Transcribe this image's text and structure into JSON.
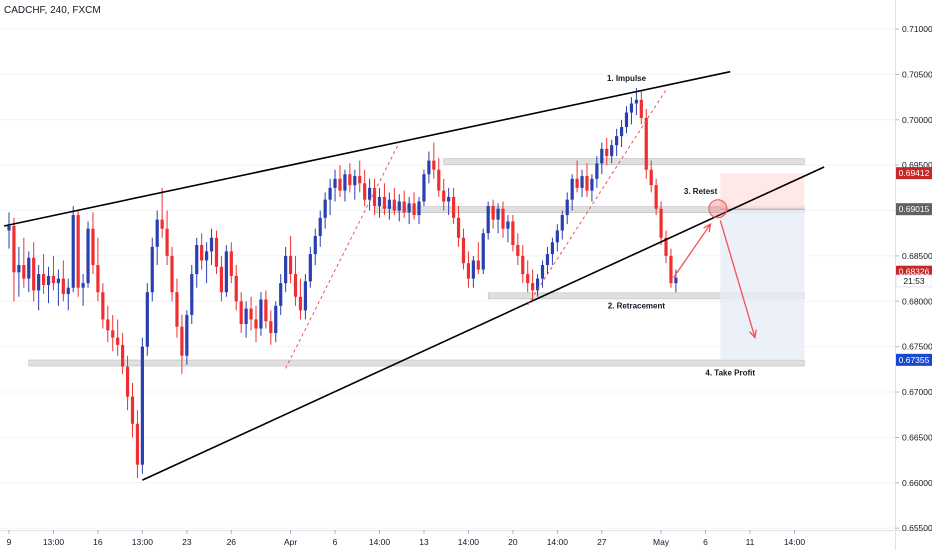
{
  "colors": {
    "up": "#2a3fb0",
    "down": "#ef2f2f",
    "trendline": "#000000",
    "zone": "#d6d6d6",
    "arrow": "#ef5350",
    "stop_zone": "#fde0dc",
    "target_zone": "#e6ecf7",
    "price_red": "#c62828",
    "price_blue": "#1848cc",
    "price_grey": "#616161"
  },
  "chart_data": {
    "type": "candlestick",
    "title": "CADCHF, 240, FXCM",
    "y_ticks": [
      "0.71000",
      "0.70500",
      "0.70000",
      "0.69500",
      "0.69000",
      "0.68500",
      "0.68000",
      "0.67500",
      "0.67000",
      "0.66500",
      "0.66000",
      "0.65500"
    ],
    "y_tick_values": [
      0.71,
      0.705,
      0.7,
      0.695,
      0.69,
      0.685,
      0.68,
      0.675,
      0.67,
      0.665,
      0.66,
      0.655
    ],
    "x_ticks": [
      "9",
      "13:00",
      "16",
      "13:00",
      "23",
      "26",
      "Apr",
      "6",
      "14:00",
      "13",
      "14:00",
      "20",
      "14:00",
      "27",
      "May",
      "6",
      "11",
      "14:00"
    ],
    "x_tick_bars": [
      0,
      9,
      18,
      27,
      36,
      45,
      57,
      66,
      75,
      84,
      93,
      102,
      111,
      120,
      132,
      141,
      150,
      159
    ],
    "ylim": [
      0.6548,
      0.7132
    ],
    "price_labels": [
      {
        "text": "0.69412",
        "value": 0.69412,
        "color": "price_red"
      },
      {
        "text": "0.69015",
        "value": 0.69015,
        "color": "price_grey"
      },
      {
        "text": "0.68326",
        "value": 0.68326,
        "color": "price_red"
      },
      {
        "text": "21:53",
        "value": 0.68225,
        "color": "plain"
      },
      {
        "text": "0.67355",
        "value": 0.67355,
        "color": "price_blue"
      }
    ],
    "annotations": [
      {
        "text": "1. Impulse",
        "bar": 125,
        "value": 0.7043
      },
      {
        "text": "2. Retracement",
        "bar": 127,
        "value": 0.6792
      },
      {
        "text": "3. Retest",
        "bar": 140,
        "value": 0.6918
      },
      {
        "text": "4. Take Profit",
        "bar": 146,
        "value": 0.6718
      }
    ],
    "trendlines": [
      {
        "from": [
          -1,
          0.6883
        ],
        "to": [
          146,
          0.7053
        ]
      },
      {
        "from": [
          27,
          0.6603
        ],
        "to": [
          165,
          0.6948
        ]
      }
    ],
    "dashed_trendlines": [
      {
        "from": [
          56,
          0.6726
        ],
        "to": [
          79,
          0.6975
        ]
      },
      {
        "from": [
          105,
          0.6796
        ],
        "to": [
          133,
          0.7033
        ]
      }
    ],
    "zones": [
      {
        "from": 88,
        "to": 161,
        "value": 0.6954
      },
      {
        "from": 74,
        "to": 161,
        "value": 0.6901
      },
      {
        "from": 97,
        "to": 161,
        "value": 0.6806
      },
      {
        "from": 4,
        "to": 161,
        "value": 0.6732
      }
    ],
    "position": {
      "from": 144,
      "to": 161,
      "entry": 0.69015,
      "stop": 0.69412,
      "target": 0.67355
    },
    "retest_circle": {
      "bar": 143.5,
      "value": 0.6902
    },
    "arrows": [
      {
        "from": [
          134.5,
          0.6826
        ],
        "to": [
          142,
          0.6885
        ]
      },
      {
        "from": [
          144,
          0.6889
        ],
        "to": [
          151,
          0.676
        ]
      }
    ],
    "candles": [
      [
        0.6878,
        0.6898,
        0.6858,
        0.6883
      ],
      [
        0.6883,
        0.6892,
        0.68,
        0.6832
      ],
      [
        0.6832,
        0.686,
        0.6805,
        0.684
      ],
      [
        0.684,
        0.687,
        0.6815,
        0.6825
      ],
      [
        0.6825,
        0.6855,
        0.681,
        0.6848
      ],
      [
        0.6848,
        0.6865,
        0.68,
        0.6812
      ],
      [
        0.6812,
        0.684,
        0.679,
        0.683
      ],
      [
        0.683,
        0.6852,
        0.6808,
        0.6818
      ],
      [
        0.6818,
        0.6838,
        0.6798,
        0.6828
      ],
      [
        0.6828,
        0.685,
        0.6812,
        0.682
      ],
      [
        0.682,
        0.6835,
        0.6795,
        0.6825
      ],
      [
        0.6825,
        0.6845,
        0.68,
        0.6808
      ],
      [
        0.6808,
        0.6825,
        0.679,
        0.6815
      ],
      [
        0.6815,
        0.6905,
        0.681,
        0.6895
      ],
      [
        0.6895,
        0.69,
        0.6805,
        0.6815
      ],
      [
        0.6815,
        0.683,
        0.6795,
        0.682
      ],
      [
        0.682,
        0.6888,
        0.6815,
        0.688
      ],
      [
        0.688,
        0.6898,
        0.683,
        0.684
      ],
      [
        0.684,
        0.687,
        0.68,
        0.681
      ],
      [
        0.681,
        0.682,
        0.677,
        0.678
      ],
      [
        0.678,
        0.6795,
        0.6755,
        0.6768
      ],
      [
        0.6768,
        0.6785,
        0.6745,
        0.676
      ],
      [
        0.676,
        0.678,
        0.674,
        0.6752
      ],
      [
        0.6752,
        0.6765,
        0.672,
        0.6728
      ],
      [
        0.6728,
        0.674,
        0.668,
        0.6695
      ],
      [
        0.6695,
        0.671,
        0.665,
        0.6665
      ],
      [
        0.6665,
        0.668,
        0.6605,
        0.662
      ],
      [
        0.662,
        0.676,
        0.661,
        0.675
      ],
      [
        0.675,
        0.682,
        0.674,
        0.681
      ],
      [
        0.681,
        0.687,
        0.68,
        0.686
      ],
      [
        0.686,
        0.69,
        0.684,
        0.689
      ],
      [
        0.689,
        0.6925,
        0.687,
        0.688
      ],
      [
        0.688,
        0.69,
        0.684,
        0.685
      ],
      [
        0.685,
        0.686,
        0.68,
        0.681
      ],
      [
        0.681,
        0.6825,
        0.676,
        0.6772
      ],
      [
        0.6772,
        0.6785,
        0.672,
        0.674
      ],
      [
        0.674,
        0.679,
        0.673,
        0.6785
      ],
      [
        0.6785,
        0.684,
        0.6775,
        0.683
      ],
      [
        0.683,
        0.687,
        0.6815,
        0.6862
      ],
      [
        0.6862,
        0.6875,
        0.6835,
        0.6845
      ],
      [
        0.6845,
        0.6865,
        0.682,
        0.6855
      ],
      [
        0.6855,
        0.688,
        0.684,
        0.687
      ],
      [
        0.687,
        0.6878,
        0.683,
        0.6838
      ],
      [
        0.6838,
        0.685,
        0.68,
        0.681
      ],
      [
        0.681,
        0.6862,
        0.6805,
        0.6855
      ],
      [
        0.6855,
        0.6865,
        0.682,
        0.6828
      ],
      [
        0.6828,
        0.684,
        0.679,
        0.68
      ],
      [
        0.68,
        0.681,
        0.6765,
        0.6775
      ],
      [
        0.6775,
        0.68,
        0.676,
        0.6792
      ],
      [
        0.6792,
        0.6805,
        0.6768,
        0.678
      ],
      [
        0.678,
        0.6795,
        0.6755,
        0.677
      ],
      [
        0.677,
        0.681,
        0.6762,
        0.6802
      ],
      [
        0.6802,
        0.6812,
        0.677,
        0.6778
      ],
      [
        0.6778,
        0.679,
        0.6752,
        0.6765
      ],
      [
        0.6765,
        0.68,
        0.6755,
        0.6795
      ],
      [
        0.6795,
        0.683,
        0.6785,
        0.682
      ],
      [
        0.682,
        0.686,
        0.681,
        0.685
      ],
      [
        0.685,
        0.6872,
        0.682,
        0.683
      ],
      [
        0.683,
        0.685,
        0.6795,
        0.6805
      ],
      [
        0.6805,
        0.6825,
        0.678,
        0.679
      ],
      [
        0.679,
        0.683,
        0.678,
        0.6822
      ],
      [
        0.6822,
        0.686,
        0.6815,
        0.6852
      ],
      [
        0.6852,
        0.688,
        0.684,
        0.6872
      ],
      [
        0.6872,
        0.69,
        0.686,
        0.6892
      ],
      [
        0.6892,
        0.692,
        0.688,
        0.6912
      ],
      [
        0.6912,
        0.6935,
        0.6895,
        0.6925
      ],
      [
        0.6925,
        0.6945,
        0.691,
        0.6935
      ],
      [
        0.6935,
        0.695,
        0.6915,
        0.6922
      ],
      [
        0.6922,
        0.6945,
        0.691,
        0.694
      ],
      [
        0.694,
        0.6952,
        0.692,
        0.6928
      ],
      [
        0.6928,
        0.6945,
        0.6912,
        0.6938
      ],
      [
        0.6938,
        0.6955,
        0.692,
        0.693
      ],
      [
        0.693,
        0.6945,
        0.6905,
        0.6912
      ],
      [
        0.6912,
        0.6935,
        0.69,
        0.6925
      ],
      [
        0.6925,
        0.6935,
        0.6895,
        0.6905
      ],
      [
        0.6905,
        0.6925,
        0.6892,
        0.6915
      ],
      [
        0.6915,
        0.693,
        0.6895,
        0.6902
      ],
      [
        0.6902,
        0.692,
        0.689,
        0.6912
      ],
      [
        0.6912,
        0.6925,
        0.6895,
        0.69
      ],
      [
        0.69,
        0.6918,
        0.6888,
        0.691
      ],
      [
        0.691,
        0.6922,
        0.6892,
        0.6898
      ],
      [
        0.6898,
        0.6915,
        0.6885,
        0.6908
      ],
      [
        0.6908,
        0.692,
        0.689,
        0.6895
      ],
      [
        0.6895,
        0.6915,
        0.6885,
        0.691
      ],
      [
        0.691,
        0.6945,
        0.6905,
        0.694
      ],
      [
        0.694,
        0.6965,
        0.693,
        0.6955
      ],
      [
        0.6955,
        0.6975,
        0.6935,
        0.6945
      ],
      [
        0.6945,
        0.6958,
        0.6915,
        0.6922
      ],
      [
        0.6922,
        0.6935,
        0.69,
        0.691
      ],
      [
        0.691,
        0.6925,
        0.6895,
        0.6915
      ],
      [
        0.6915,
        0.6925,
        0.6885,
        0.6892
      ],
      [
        0.6892,
        0.6905,
        0.686,
        0.687
      ],
      [
        0.687,
        0.688,
        0.6835,
        0.6842
      ],
      [
        0.6842,
        0.6855,
        0.6815,
        0.6825
      ],
      [
        0.6825,
        0.685,
        0.6815,
        0.6845
      ],
      [
        0.6845,
        0.6865,
        0.683,
        0.6835
      ],
      [
        0.6835,
        0.688,
        0.683,
        0.6875
      ],
      [
        0.6875,
        0.691,
        0.6868,
        0.6905
      ],
      [
        0.6905,
        0.6912,
        0.688,
        0.689
      ],
      [
        0.689,
        0.6908,
        0.6875,
        0.6902
      ],
      [
        0.6902,
        0.691,
        0.687,
        0.688
      ],
      [
        0.688,
        0.6895,
        0.6865,
        0.6888
      ],
      [
        0.6888,
        0.6895,
        0.6855,
        0.6862
      ],
      [
        0.6862,
        0.6875,
        0.684,
        0.685
      ],
      [
        0.685,
        0.6862,
        0.682,
        0.683
      ],
      [
        0.683,
        0.6845,
        0.681,
        0.682
      ],
      [
        0.682,
        0.6835,
        0.68,
        0.6812
      ],
      [
        0.6812,
        0.683,
        0.6805,
        0.6825
      ],
      [
        0.6825,
        0.6845,
        0.6815,
        0.684
      ],
      [
        0.684,
        0.686,
        0.683,
        0.6852
      ],
      [
        0.6852,
        0.687,
        0.684,
        0.6865
      ],
      [
        0.6865,
        0.6885,
        0.6855,
        0.6878
      ],
      [
        0.6878,
        0.69,
        0.6868,
        0.6895
      ],
      [
        0.6895,
        0.692,
        0.6885,
        0.6912
      ],
      [
        0.6912,
        0.694,
        0.69,
        0.6935
      ],
      [
        0.6935,
        0.6955,
        0.692,
        0.6925
      ],
      [
        0.6925,
        0.6945,
        0.6915,
        0.6938
      ],
      [
        0.6938,
        0.6952,
        0.6915,
        0.6922
      ],
      [
        0.6922,
        0.694,
        0.691,
        0.6935
      ],
      [
        0.6935,
        0.696,
        0.6925,
        0.6952
      ],
      [
        0.6952,
        0.6975,
        0.694,
        0.6968
      ],
      [
        0.6968,
        0.698,
        0.695,
        0.696
      ],
      [
        0.696,
        0.6978,
        0.6952,
        0.6972
      ],
      [
        0.6972,
        0.699,
        0.696,
        0.6982
      ],
      [
        0.6982,
        0.7,
        0.697,
        0.6992
      ],
      [
        0.6992,
        0.7015,
        0.6985,
        0.7008
      ],
      [
        0.7008,
        0.7025,
        0.6995,
        0.7018
      ],
      [
        0.7018,
        0.7035,
        0.7005,
        0.7022
      ],
      [
        0.7022,
        0.7032,
        0.6995,
        0.7002
      ],
      [
        0.7002,
        0.7012,
        0.6935,
        0.6945
      ],
      [
        0.6945,
        0.6955,
        0.692,
        0.6928
      ],
      [
        0.6928,
        0.6935,
        0.6895,
        0.6902
      ],
      [
        0.6902,
        0.691,
        0.6862,
        0.687
      ],
      [
        0.687,
        0.6878,
        0.6842,
        0.685
      ],
      [
        0.685,
        0.6858,
        0.6815,
        0.682
      ],
      [
        0.682,
        0.6835,
        0.681,
        0.6826
      ]
    ]
  }
}
